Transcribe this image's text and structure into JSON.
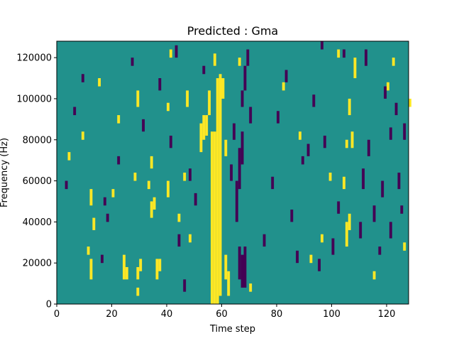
{
  "chart_data": {
    "type": "heatmap",
    "title": "Predicted : Gma",
    "xlabel": "Time step",
    "ylabel": "Frequency (Hz)",
    "xlim": [
      0,
      128
    ],
    "ylim": [
      0,
      128000
    ],
    "xticks": [
      0,
      20,
      40,
      60,
      80,
      100,
      120
    ],
    "yticks": [
      0,
      20000,
      40000,
      60000,
      80000,
      100000,
      120000
    ],
    "colors": {
      "background": "#21918c",
      "low": "#440154",
      "high": "#fde725"
    },
    "cells": {
      "columns": 128,
      "rows": 64,
      "background_value": 0.5,
      "high_runs": [
        [
          56,
          0,
          42
        ],
        [
          57,
          0,
          42
        ],
        [
          58,
          0,
          55
        ],
        [
          59,
          2,
          56
        ],
        [
          57,
          58,
          61
        ],
        [
          60,
          50,
          55
        ],
        [
          61,
          6,
          12
        ],
        [
          61,
          36,
          40
        ],
        [
          62,
          2,
          8
        ],
        [
          12,
          6,
          11
        ],
        [
          11,
          12,
          14
        ],
        [
          13,
          18,
          21
        ],
        [
          12,
          24,
          28
        ],
        [
          24,
          6,
          12
        ],
        [
          25,
          6,
          9
        ],
        [
          29,
          6,
          9
        ],
        [
          30,
          8,
          11
        ],
        [
          36,
          6,
          11
        ],
        [
          37,
          8,
          11
        ],
        [
          34,
          21,
          25
        ],
        [
          35,
          23,
          26
        ],
        [
          33,
          28,
          30
        ],
        [
          34,
          33,
          36
        ],
        [
          40,
          26,
          30
        ],
        [
          46,
          30,
          32
        ],
        [
          47,
          48,
          52
        ],
        [
          52,
          37,
          44
        ],
        [
          53,
          40,
          46
        ],
        [
          54,
          41,
          46
        ],
        [
          55,
          46,
          52
        ],
        [
          105,
          14,
          20
        ],
        [
          106,
          18,
          22
        ],
        [
          105,
          38,
          40
        ],
        [
          106,
          46,
          50
        ],
        [
          107,
          38,
          42
        ],
        [
          108,
          55,
          60
        ],
        [
          104,
          28,
          31
        ],
        [
          29,
          48,
          52
        ],
        [
          29,
          2,
          4
        ],
        [
          66,
          58,
          60
        ],
        [
          102,
          60,
          62
        ],
        [
          70,
          3,
          5
        ],
        [
          48,
          15,
          17
        ],
        [
          44,
          20,
          22
        ],
        [
          20,
          26,
          28
        ],
        [
          28,
          30,
          32
        ],
        [
          9,
          40,
          42
        ],
        [
          4,
          35,
          37
        ],
        [
          22,
          44,
          46
        ],
        [
          15,
          53,
          55
        ],
        [
          41,
          60,
          62
        ],
        [
          40,
          47,
          49
        ],
        [
          82,
          52,
          54
        ],
        [
          88,
          40,
          42
        ],
        [
          92,
          10,
          12
        ],
        [
          96,
          15,
          17
        ],
        [
          99,
          30,
          32
        ],
        [
          115,
          6,
          8
        ],
        [
          120,
          52,
          54
        ],
        [
          122,
          58,
          60
        ],
        [
          128,
          48,
          50
        ],
        [
          126,
          13,
          15
        ]
      ],
      "low_runs": [
        [
          66,
          6,
          14
        ],
        [
          67,
          4,
          12
        ],
        [
          68,
          4,
          14
        ],
        [
          65,
          20,
          30
        ],
        [
          66,
          28,
          38
        ],
        [
          67,
          34,
          42
        ],
        [
          63,
          30,
          34
        ],
        [
          64,
          40,
          44
        ],
        [
          67,
          48,
          52
        ],
        [
          68,
          52,
          58
        ],
        [
          70,
          44,
          48
        ],
        [
          69,
          58,
          62
        ],
        [
          91,
          36,
          39
        ],
        [
          95,
          8,
          11
        ],
        [
          97,
          38,
          41
        ],
        [
          100,
          12,
          16
        ],
        [
          102,
          22,
          25
        ],
        [
          110,
          16,
          20
        ],
        [
          111,
          28,
          33
        ],
        [
          113,
          36,
          40
        ],
        [
          115,
          20,
          24
        ],
        [
          118,
          26,
          30
        ],
        [
          121,
          16,
          20
        ],
        [
          124,
          28,
          32
        ],
        [
          125,
          22,
          24
        ],
        [
          126,
          40,
          44
        ],
        [
          119,
          50,
          53
        ],
        [
          123,
          46,
          49
        ],
        [
          16,
          10,
          12
        ],
        [
          17,
          24,
          26
        ],
        [
          18,
          20,
          22
        ],
        [
          22,
          34,
          36
        ],
        [
          31,
          42,
          45
        ],
        [
          37,
          52,
          55
        ],
        [
          41,
          38,
          41
        ],
        [
          44,
          14,
          17
        ],
        [
          46,
          3,
          6
        ],
        [
          48,
          30,
          33
        ],
        [
          50,
          24,
          27
        ],
        [
          53,
          56,
          58
        ],
        [
          75,
          14,
          17
        ],
        [
          78,
          28,
          31
        ],
        [
          80,
          44,
          47
        ],
        [
          83,
          54,
          57
        ],
        [
          85,
          20,
          23
        ],
        [
          87,
          10,
          13
        ],
        [
          89,
          34,
          36
        ],
        [
          93,
          48,
          51
        ],
        [
          3,
          28,
          30
        ],
        [
          6,
          46,
          48
        ],
        [
          9,
          54,
          56
        ],
        [
          27,
          58,
          60
        ],
        [
          43,
          60,
          63
        ],
        [
          96,
          62,
          64
        ],
        [
          104,
          60,
          62
        ],
        [
          112,
          58,
          62
        ],
        [
          117,
          12,
          14
        ],
        [
          121,
          40,
          43
        ]
      ]
    }
  }
}
